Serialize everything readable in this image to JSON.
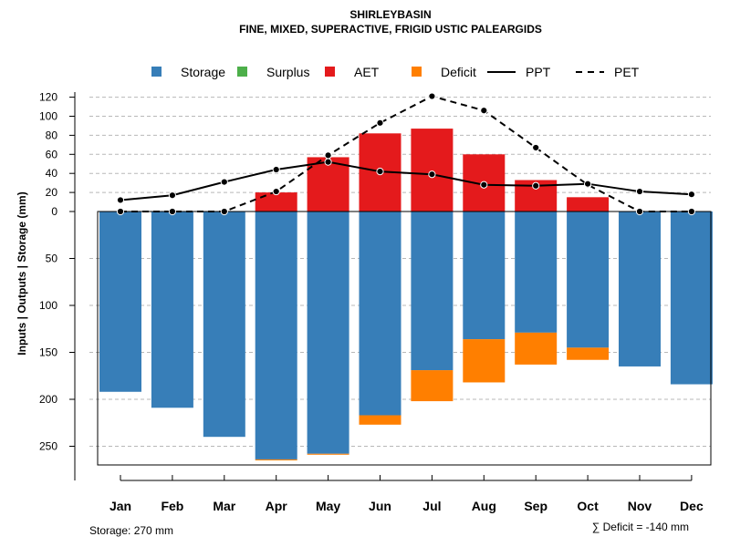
{
  "chart_data": {
    "type": "bar",
    "title": "SHIRLEYBASIN",
    "subtitle": "FINE, MIXED, SUPERACTIVE, FRIGID USTIC PALEARGIDS",
    "ylabel": "Inputs | Outputs | Storage    (mm)",
    "categories": [
      "Jan",
      "Feb",
      "Mar",
      "Apr",
      "May",
      "Jun",
      "Jul",
      "Aug",
      "Sep",
      "Oct",
      "Nov",
      "Dec"
    ],
    "upper_ticks": [
      "0",
      "20",
      "40",
      "60",
      "80",
      "100",
      "120"
    ],
    "lower_ticks": [
      "50",
      "100",
      "150",
      "200",
      "250"
    ],
    "ylim_upper": [
      0,
      130
    ],
    "ylim_lower": [
      0,
      270
    ],
    "legend": [
      {
        "label": "Storage",
        "color": "#377eb8",
        "kind": "box"
      },
      {
        "label": "Surplus",
        "color": "#4daf4a",
        "kind": "box"
      },
      {
        "label": "AET",
        "color": "#e41a1c",
        "kind": "box"
      },
      {
        "label": "Deficit",
        "color": "#ff7f00",
        "kind": "box"
      },
      {
        "label": "PPT",
        "color": "#000000",
        "kind": "solid"
      },
      {
        "label": "PET",
        "color": "#000000",
        "kind": "dashed"
      }
    ],
    "series": [
      {
        "name": "AET",
        "color": "#e41a1c",
        "values": [
          0,
          0,
          0,
          20,
          57,
          82,
          87,
          60,
          33,
          15,
          0,
          0
        ]
      },
      {
        "name": "Storage",
        "color": "#377eb8",
        "values": [
          192,
          209,
          240,
          264,
          258,
          217,
          169,
          136,
          129,
          145,
          165,
          184
        ]
      },
      {
        "name": "Deficit",
        "color": "#ff7f00",
        "values": [
          0,
          0,
          0,
          1,
          1,
          10,
          33,
          46,
          34,
          13,
          0,
          0
        ]
      },
      {
        "name": "Surplus",
        "color": "#4daf4a",
        "values": [
          0,
          0,
          0,
          0,
          0,
          0,
          0,
          0,
          0,
          0,
          0,
          0
        ]
      },
      {
        "name": "PPT",
        "color": "#000000",
        "values": [
          12,
          17,
          31,
          44,
          52,
          42,
          39,
          28,
          27,
          29,
          21,
          18
        ]
      },
      {
        "name": "PET",
        "color": "#000000",
        "values": [
          0,
          0,
          0,
          21,
          59,
          93,
          121,
          106,
          67,
          28,
          0,
          0
        ]
      }
    ],
    "footer_left": "Storage: 270 mm",
    "footer_right": "∑ Deficit = -140 mm"
  }
}
